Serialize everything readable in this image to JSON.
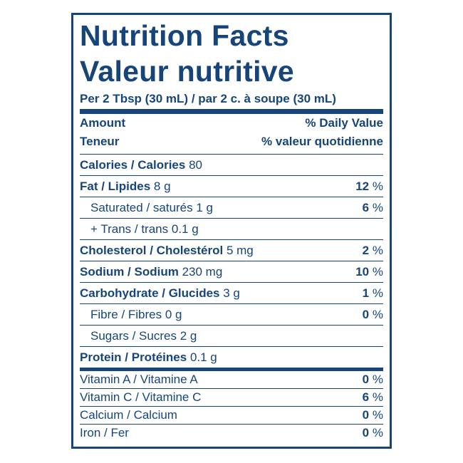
{
  "header": {
    "title": "Nutrition Facts",
    "title_fr": "Valeur nutritive",
    "serving": "Per 2 Tbsp (30 mL) / par 2 c. à soupe (30 mL)"
  },
  "columns": {
    "amount": "Amount",
    "amount_fr": "Teneur",
    "dv": "% Daily Value",
    "dv_fr": "% valeur quotidienne"
  },
  "nutrients": [
    {
      "name": "Calories / Calories",
      "amount": "80"
    },
    {
      "name": "Fat / Lipides",
      "amount": "8 g",
      "dv": "12",
      "unit": "%"
    },
    {
      "name": "Saturated / saturés",
      "amount": "1 g",
      "dv": "6",
      "unit": "%"
    },
    {
      "name": "+ Trans / trans",
      "amount": "0.1 g"
    },
    {
      "name": "Cholesterol / Cholestérol",
      "amount": "5 mg",
      "dv": "2",
      "unit": "%"
    },
    {
      "name": "Sodium / Sodium",
      "amount": "230 mg",
      "dv": "10",
      "unit": "%"
    },
    {
      "name": "Carbohydrate / Glucides",
      "amount": "3 g",
      "dv": "1",
      "unit": "%"
    },
    {
      "name": "Fibre / Fibres",
      "amount": "0 g",
      "dv": "0",
      "unit": "%"
    },
    {
      "name": "Sugars / Sucres",
      "amount": "2 g"
    },
    {
      "name": "Protein / Protéines",
      "amount": "0.1 g"
    }
  ],
  "vitamins": [
    {
      "name": "Vitamin A / Vitamine A",
      "dv": "0",
      "unit": "%"
    },
    {
      "name": "Vitamin C / Vitamine C",
      "dv": "6",
      "unit": "%"
    },
    {
      "name": "Calcium / Calcium",
      "dv": "0",
      "unit": "%"
    },
    {
      "name": "Iron / Fer",
      "dv": "0",
      "unit": "%"
    }
  ]
}
